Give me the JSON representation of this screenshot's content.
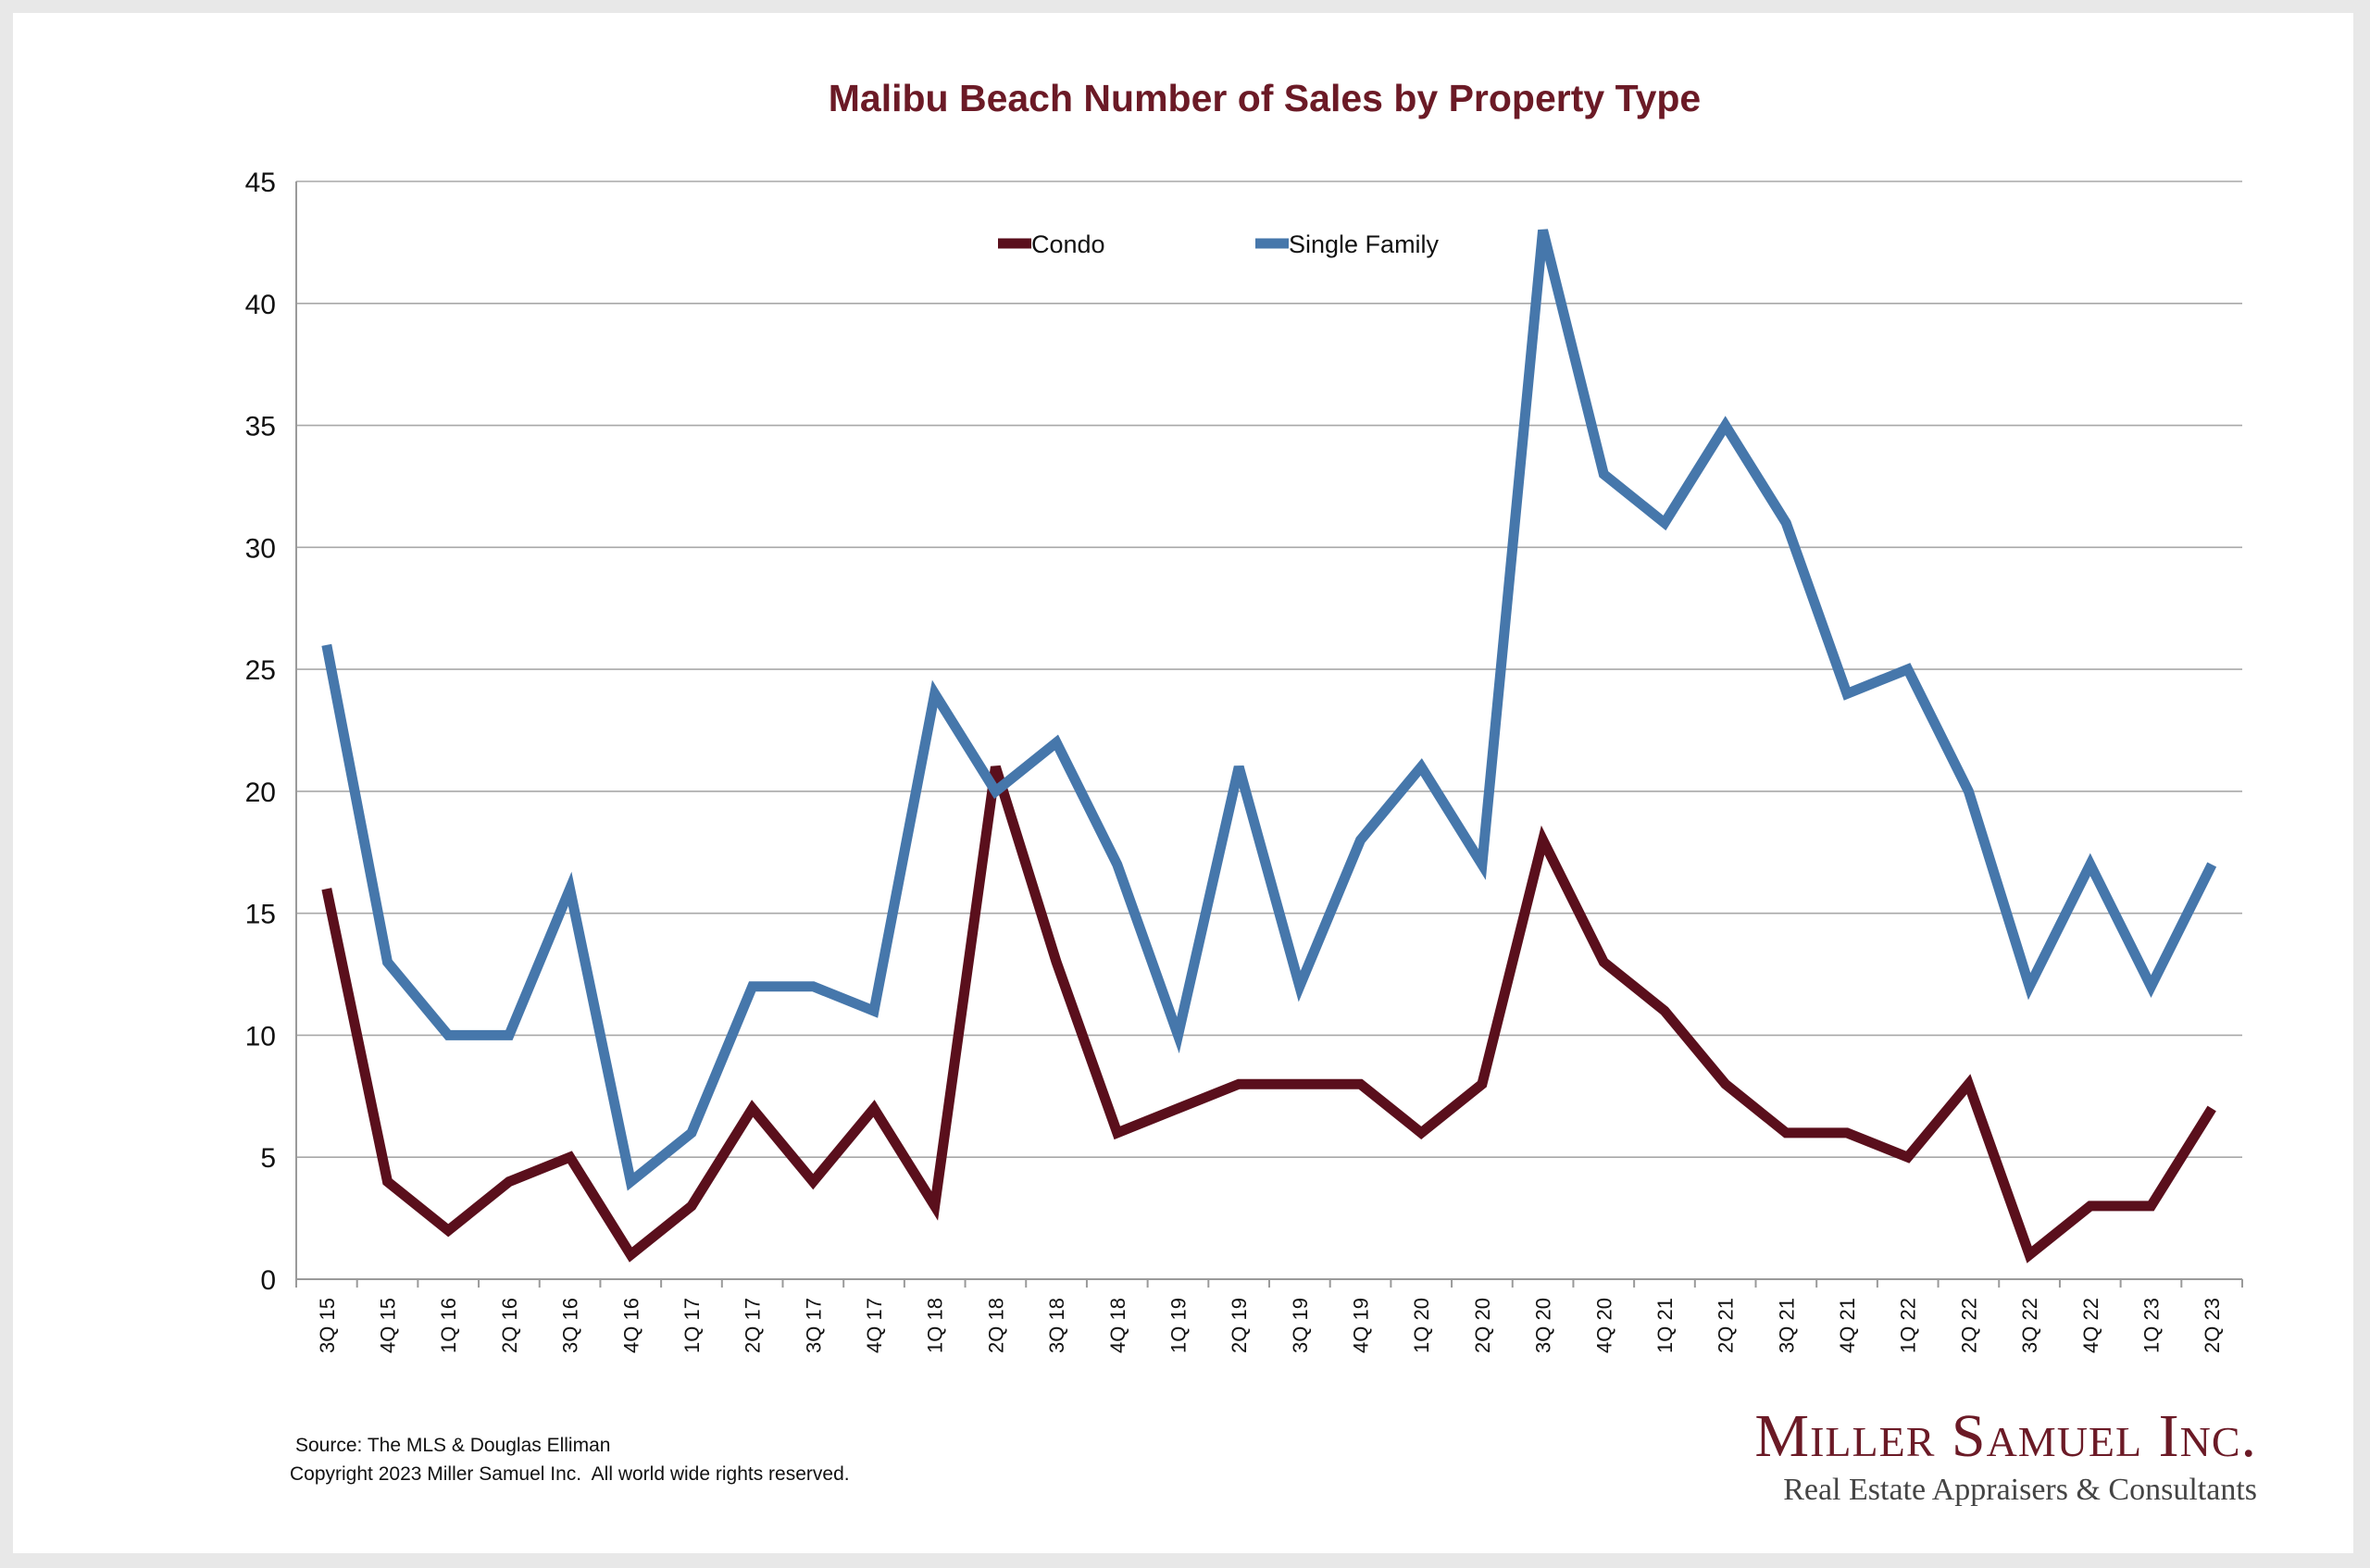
{
  "chart_data": {
    "type": "line",
    "title": "Malibu Beach Number of Sales by Property Type",
    "xlabel": "",
    "ylabel": "",
    "ylim": [
      0,
      45
    ],
    "yticks": [
      "0",
      "5",
      "10",
      "15",
      "20",
      "25",
      "30",
      "35",
      "40",
      "45"
    ],
    "grid": true,
    "legend_position": "top-center",
    "categories": [
      "3Q 15",
      "4Q 15",
      "1Q 16",
      "2Q 16",
      "3Q 16",
      "4Q 16",
      "1Q 17",
      "2Q 17",
      "3Q 17",
      "4Q 17",
      "1Q 18",
      "2Q 18",
      "3Q 18",
      "4Q 18",
      "1Q 19",
      "2Q 19",
      "3Q 19",
      "4Q 19",
      "1Q 20",
      "2Q 20",
      "3Q 20",
      "4Q 20",
      "1Q 21",
      "2Q 21",
      "3Q 21",
      "4Q 21",
      "1Q 22",
      "2Q 22",
      "3Q 22",
      "4Q 22",
      "1Q 23",
      "2Q 23"
    ],
    "series": [
      {
        "name": "Condo",
        "color": "#5a0f1c",
        "values": [
          16,
          4,
          2,
          4,
          5,
          1,
          3,
          7,
          4,
          7,
          3,
          21,
          13,
          6,
          7,
          8,
          8,
          8,
          6,
          8,
          18,
          13,
          11,
          8,
          6,
          6,
          5,
          8,
          1,
          3,
          3,
          7
        ]
      },
      {
        "name": "Single Family",
        "color": "#4677ab",
        "values": [
          26,
          13,
          10,
          10,
          16,
          4,
          6,
          12,
          12,
          11,
          24,
          20,
          22,
          17,
          10,
          21,
          12,
          18,
          21,
          17,
          43,
          33,
          31,
          35,
          31,
          24,
          25,
          20,
          12,
          17,
          12,
          17
        ]
      }
    ]
  },
  "footer": {
    "source": "Source: The MLS & Douglas Elliman",
    "copyright": "Copyright 2023 Miller Samuel Inc.  All world wide rights reserved."
  },
  "brand": {
    "name": "Miller Samuel Inc.",
    "tagline": "Real Estate Appraisers & Consultants",
    "color": "#6b1a26"
  }
}
